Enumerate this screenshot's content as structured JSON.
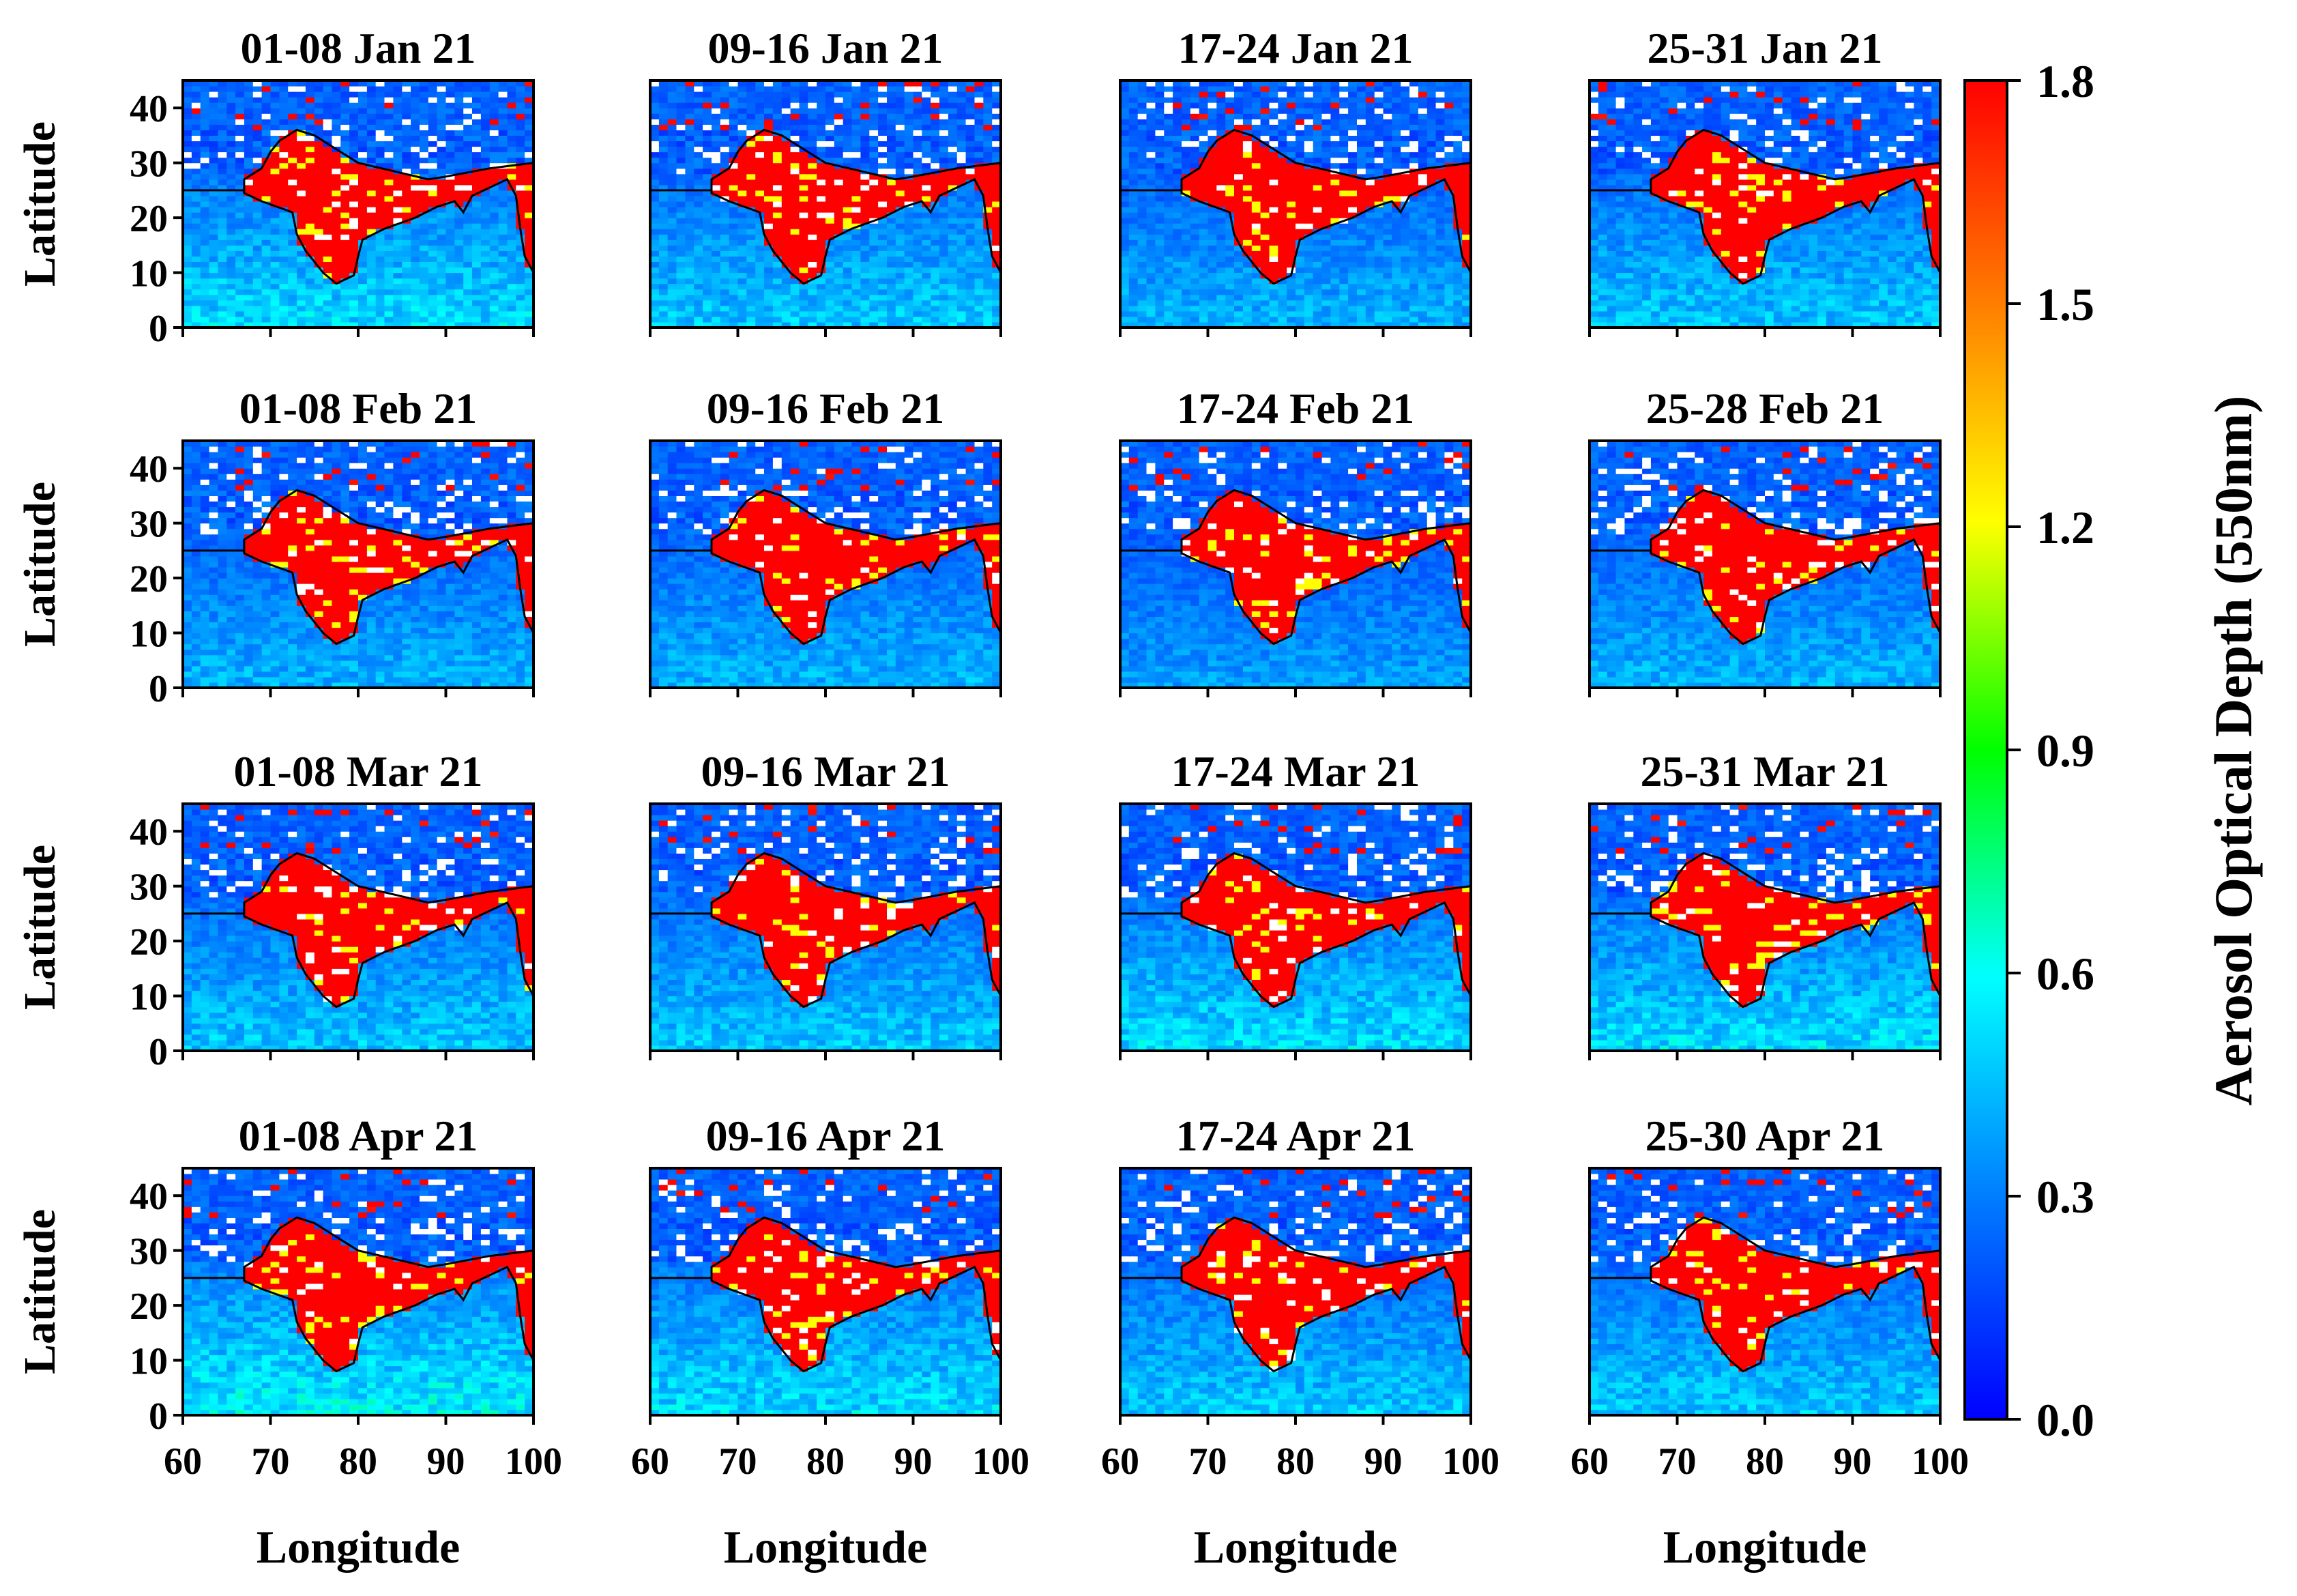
{
  "chart_data": {
    "type": "heatmap",
    "description_text": "",
    "xlabel": "Longitude",
    "ylabel": "Latitude",
    "xlim": [
      60,
      100
    ],
    "ylim": [
      0,
      45
    ],
    "xticks": [
      60,
      70,
      80,
      90,
      100
    ],
    "yticks": [
      0,
      10,
      20,
      30,
      40
    ],
    "colorbar": {
      "label": "Aerosol Optical Depth (550nm)",
      "range": [
        0.0,
        1.8
      ],
      "ticks": [
        "1.8",
        "1.5",
        "1.2",
        "0.9",
        "0.6",
        "0.3",
        "0.0"
      ],
      "colors": [
        "#0000ff",
        "#0080ff",
        "#00ffff",
        "#00ff00",
        "#ffff00",
        "#ff8000",
        "#ff0000"
      ]
    },
    "panels": [
      {
        "title": "01-08 Jan 21",
        "period": "Jan 21",
        "haze": 0.55
      },
      {
        "title": "09-16 Jan 21",
        "period": "Jan 21",
        "haze": 0.5
      },
      {
        "title": "17-24 Jan 21",
        "period": "Jan 21",
        "haze": 0.45
      },
      {
        "title": "25-31 Jan 21",
        "period": "Jan 21",
        "haze": 0.5
      },
      {
        "title": "01-08 Feb 21",
        "period": "Feb 21",
        "haze": 0.45
      },
      {
        "title": "09-16 Feb 21",
        "period": "Feb 21",
        "haze": 0.45
      },
      {
        "title": "17-24 Feb 21",
        "period": "Feb 21",
        "haze": 0.4
      },
      {
        "title": "25-28 Feb 21",
        "period": "Feb 21",
        "haze": 0.45
      },
      {
        "title": "01-08 Mar 21",
        "period": "Mar 21",
        "haze": 0.5
      },
      {
        "title": "09-16 Mar 21",
        "period": "Mar 21",
        "haze": 0.5
      },
      {
        "title": "17-24 Mar 21",
        "period": "Mar 21",
        "haze": 0.55
      },
      {
        "title": "25-31 Mar 21",
        "period": "Mar 21",
        "haze": 0.55
      },
      {
        "title": "01-08 Apr 21",
        "period": "Apr 21",
        "haze": 0.6
      },
      {
        "title": "09-16 Apr 21",
        "period": "Apr 21",
        "haze": 0.55
      },
      {
        "title": "17-24 Apr 21",
        "period": "Apr 21",
        "haze": 0.5
      },
      {
        "title": "25-30 Apr 21",
        "period": "Apr 21",
        "haze": 0.5
      }
    ]
  }
}
